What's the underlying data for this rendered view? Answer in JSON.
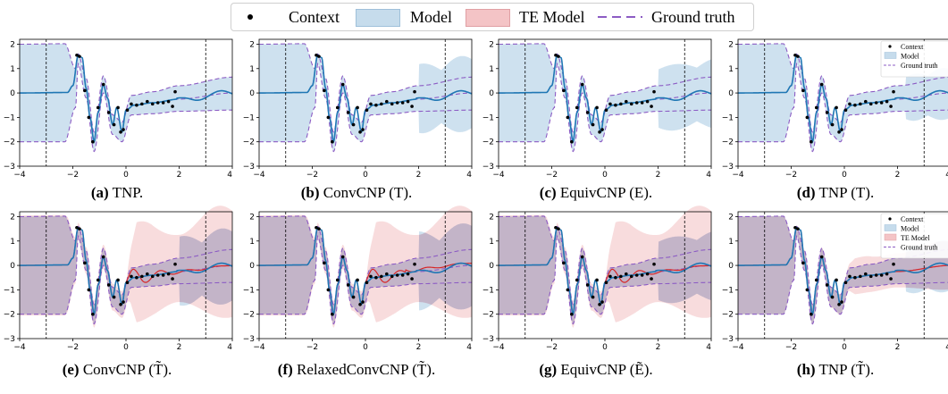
{
  "legend": {
    "context": "Context",
    "model": "Model",
    "te_model": "TE Model",
    "ground_truth": "Ground truth"
  },
  "colors": {
    "model_fill": "#c6dcec",
    "model_line": "#1f77b4",
    "te_fill": "#f4c4c6",
    "te_line": "#d62728",
    "ground_truth": "#8c5cc4",
    "context": "#000000"
  },
  "panels": [
    {
      "label": "(a)",
      "name": "TNP.",
      "te": false,
      "variant": "tnp",
      "legend_box": false
    },
    {
      "label": "(b)",
      "name": "ConvCNP (T).",
      "te": false,
      "variant": "conv",
      "legend_box": false
    },
    {
      "label": "(c)",
      "name": "EquivCNP (E).",
      "te": false,
      "variant": "equiv",
      "legend_box": false
    },
    {
      "label": "(d)",
      "name": "TNP (T).",
      "te": false,
      "variant": "tnpT",
      "legend_box": true
    },
    {
      "label": "(e)",
      "name": "ConvCNP (T̃).",
      "te": true,
      "variant": "conv",
      "legend_box": false
    },
    {
      "label": "(f)",
      "name": "RelaxedConvCNP (T̃).",
      "te": true,
      "variant": "relaxed",
      "legend_box": false
    },
    {
      "label": "(g)",
      "name": "EquivCNP (Ẽ).",
      "te": true,
      "variant": "equiv",
      "legend_box": false
    },
    {
      "label": "(h)",
      "name": "TNP (T̃).",
      "te": true,
      "variant": "tnpT",
      "legend_box": true
    }
  ],
  "chart_data": {
    "type": "line",
    "xlim": [
      -4,
      4
    ],
    "ylim": [
      -3,
      2.2
    ],
    "xticks": [
      "−4",
      "−2",
      "0",
      "2",
      "4"
    ],
    "yticks": [
      "−3",
      "−2",
      "−1",
      "0",
      "1",
      "2"
    ],
    "context_region": [
      -3,
      3
    ],
    "context_points": [
      {
        "x": -1.85,
        "y": 1.55
      },
      {
        "x": -1.75,
        "y": 1.5
      },
      {
        "x": -1.55,
        "y": 0.1
      },
      {
        "x": -1.4,
        "y": -1.0
      },
      {
        "x": -1.25,
        "y": -2.0
      },
      {
        "x": -1.05,
        "y": -0.6
      },
      {
        "x": -0.85,
        "y": 0.35
      },
      {
        "x": -0.65,
        "y": -0.8
      },
      {
        "x": -0.45,
        "y": -1.3
      },
      {
        "x": -0.3,
        "y": -0.6
      },
      {
        "x": -0.2,
        "y": -1.6
      },
      {
        "x": -0.1,
        "y": -1.5
      },
      {
        "x": 0.05,
        "y": -0.7
      },
      {
        "x": 0.2,
        "y": -0.45
      },
      {
        "x": 0.4,
        "y": -0.5
      },
      {
        "x": 0.6,
        "y": -0.45
      },
      {
        "x": 0.8,
        "y": -0.35
      },
      {
        "x": 1.0,
        "y": -0.45
      },
      {
        "x": 1.2,
        "y": -0.4
      },
      {
        "x": 1.4,
        "y": -0.4
      },
      {
        "x": 1.6,
        "y": -0.35
      },
      {
        "x": 1.75,
        "y": -0.55
      },
      {
        "x": 1.85,
        "y": 0.05
      }
    ],
    "ground_truth_mean": [
      [
        -4,
        0
      ],
      [
        -2.2,
        0.02
      ],
      [
        -2.0,
        0.3
      ],
      [
        -1.8,
        1.55
      ],
      [
        -1.65,
        1.45
      ],
      [
        -1.5,
        0.2
      ],
      [
        -1.35,
        -1.0
      ],
      [
        -1.2,
        -2.0
      ],
      [
        -1.05,
        -0.8
      ],
      [
        -0.85,
        0.35
      ],
      [
        -0.7,
        -0.2
      ],
      [
        -0.5,
        -1.3
      ],
      [
        -0.35,
        -0.6
      ],
      [
        -0.15,
        -1.6
      ],
      [
        0,
        -0.7
      ],
      [
        0.3,
        -0.5
      ],
      [
        1,
        -0.4
      ],
      [
        2,
        -0.25
      ],
      [
        4,
        0
      ]
    ],
    "ground_truth_band": {
      "outside": 2.0,
      "upper": [
        [
          -4,
          2.0
        ],
        [
          -2.3,
          2.02
        ],
        [
          -1.9,
          1.0
        ],
        [
          -1.8,
          1.6
        ],
        [
          -1.5,
          0.6
        ],
        [
          -1.2,
          -1.6
        ],
        [
          -0.85,
          0.7
        ],
        [
          -0.5,
          -0.9
        ],
        [
          -0.15,
          -1.2
        ],
        [
          0.2,
          -0.1
        ],
        [
          1,
          0.05
        ],
        [
          2,
          0.3
        ],
        [
          4,
          0.65
        ]
      ],
      "lower": [
        [
          -4,
          -2.0
        ],
        [
          -2.3,
          -2.0
        ],
        [
          -1.9,
          -0.6
        ],
        [
          -1.8,
          1.2
        ],
        [
          -1.5,
          -0.2
        ],
        [
          -1.2,
          -2.4
        ],
        [
          -0.85,
          0.0
        ],
        [
          -0.5,
          -1.7
        ],
        [
          -0.15,
          -2.0
        ],
        [
          0.2,
          -0.9
        ],
        [
          1,
          -0.85
        ],
        [
          2,
          -0.75
        ],
        [
          4,
          -0.7
        ]
      ]
    }
  }
}
